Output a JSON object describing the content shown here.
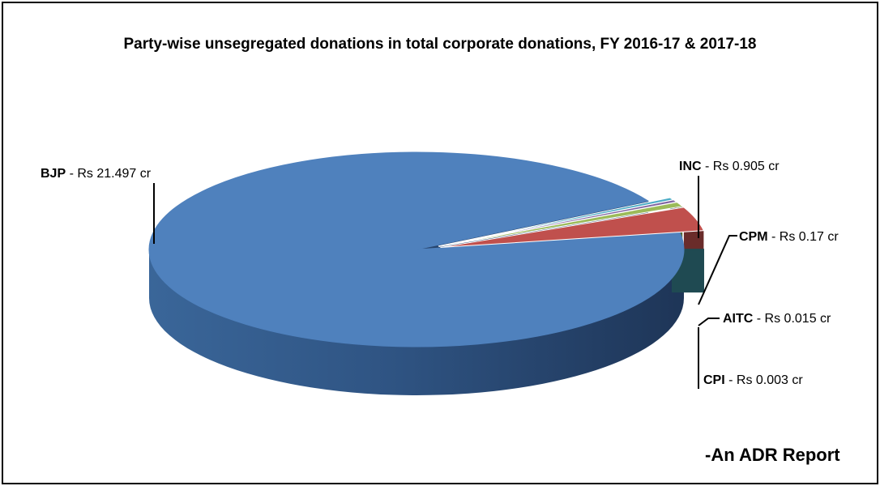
{
  "title": "Party-wise unsegregated donations in total corporate donations, FY 2016-17 & 2017-18",
  "source_note": "-An ADR Report",
  "chart_data": {
    "type": "pie",
    "style": "3d-exploded",
    "title": "Party-wise unsegregated donations in total corporate donations, FY 2016-17 & 2017-18",
    "unit": "Rs cr",
    "slices": [
      {
        "party": "BJP",
        "value": 21.497,
        "label_rest": " - Rs 21.497 cr",
        "color": "#4F81BD"
      },
      {
        "party": "INC",
        "value": 0.905,
        "label_rest": " - Rs 0.905 cr",
        "color": "#C0504D"
      },
      {
        "party": "CPM",
        "value": 0.17,
        "label_rest": " - Rs 0.17 cr",
        "color": "#9BBB59"
      },
      {
        "party": "AITC",
        "value": 0.015,
        "label_rest": " - Rs 0.015 cr",
        "color": "#8064A2"
      },
      {
        "party": "CPI",
        "value": 0.003,
        "label_rest": " - Rs 0.003 cr",
        "color": "#4BACC6"
      }
    ]
  }
}
